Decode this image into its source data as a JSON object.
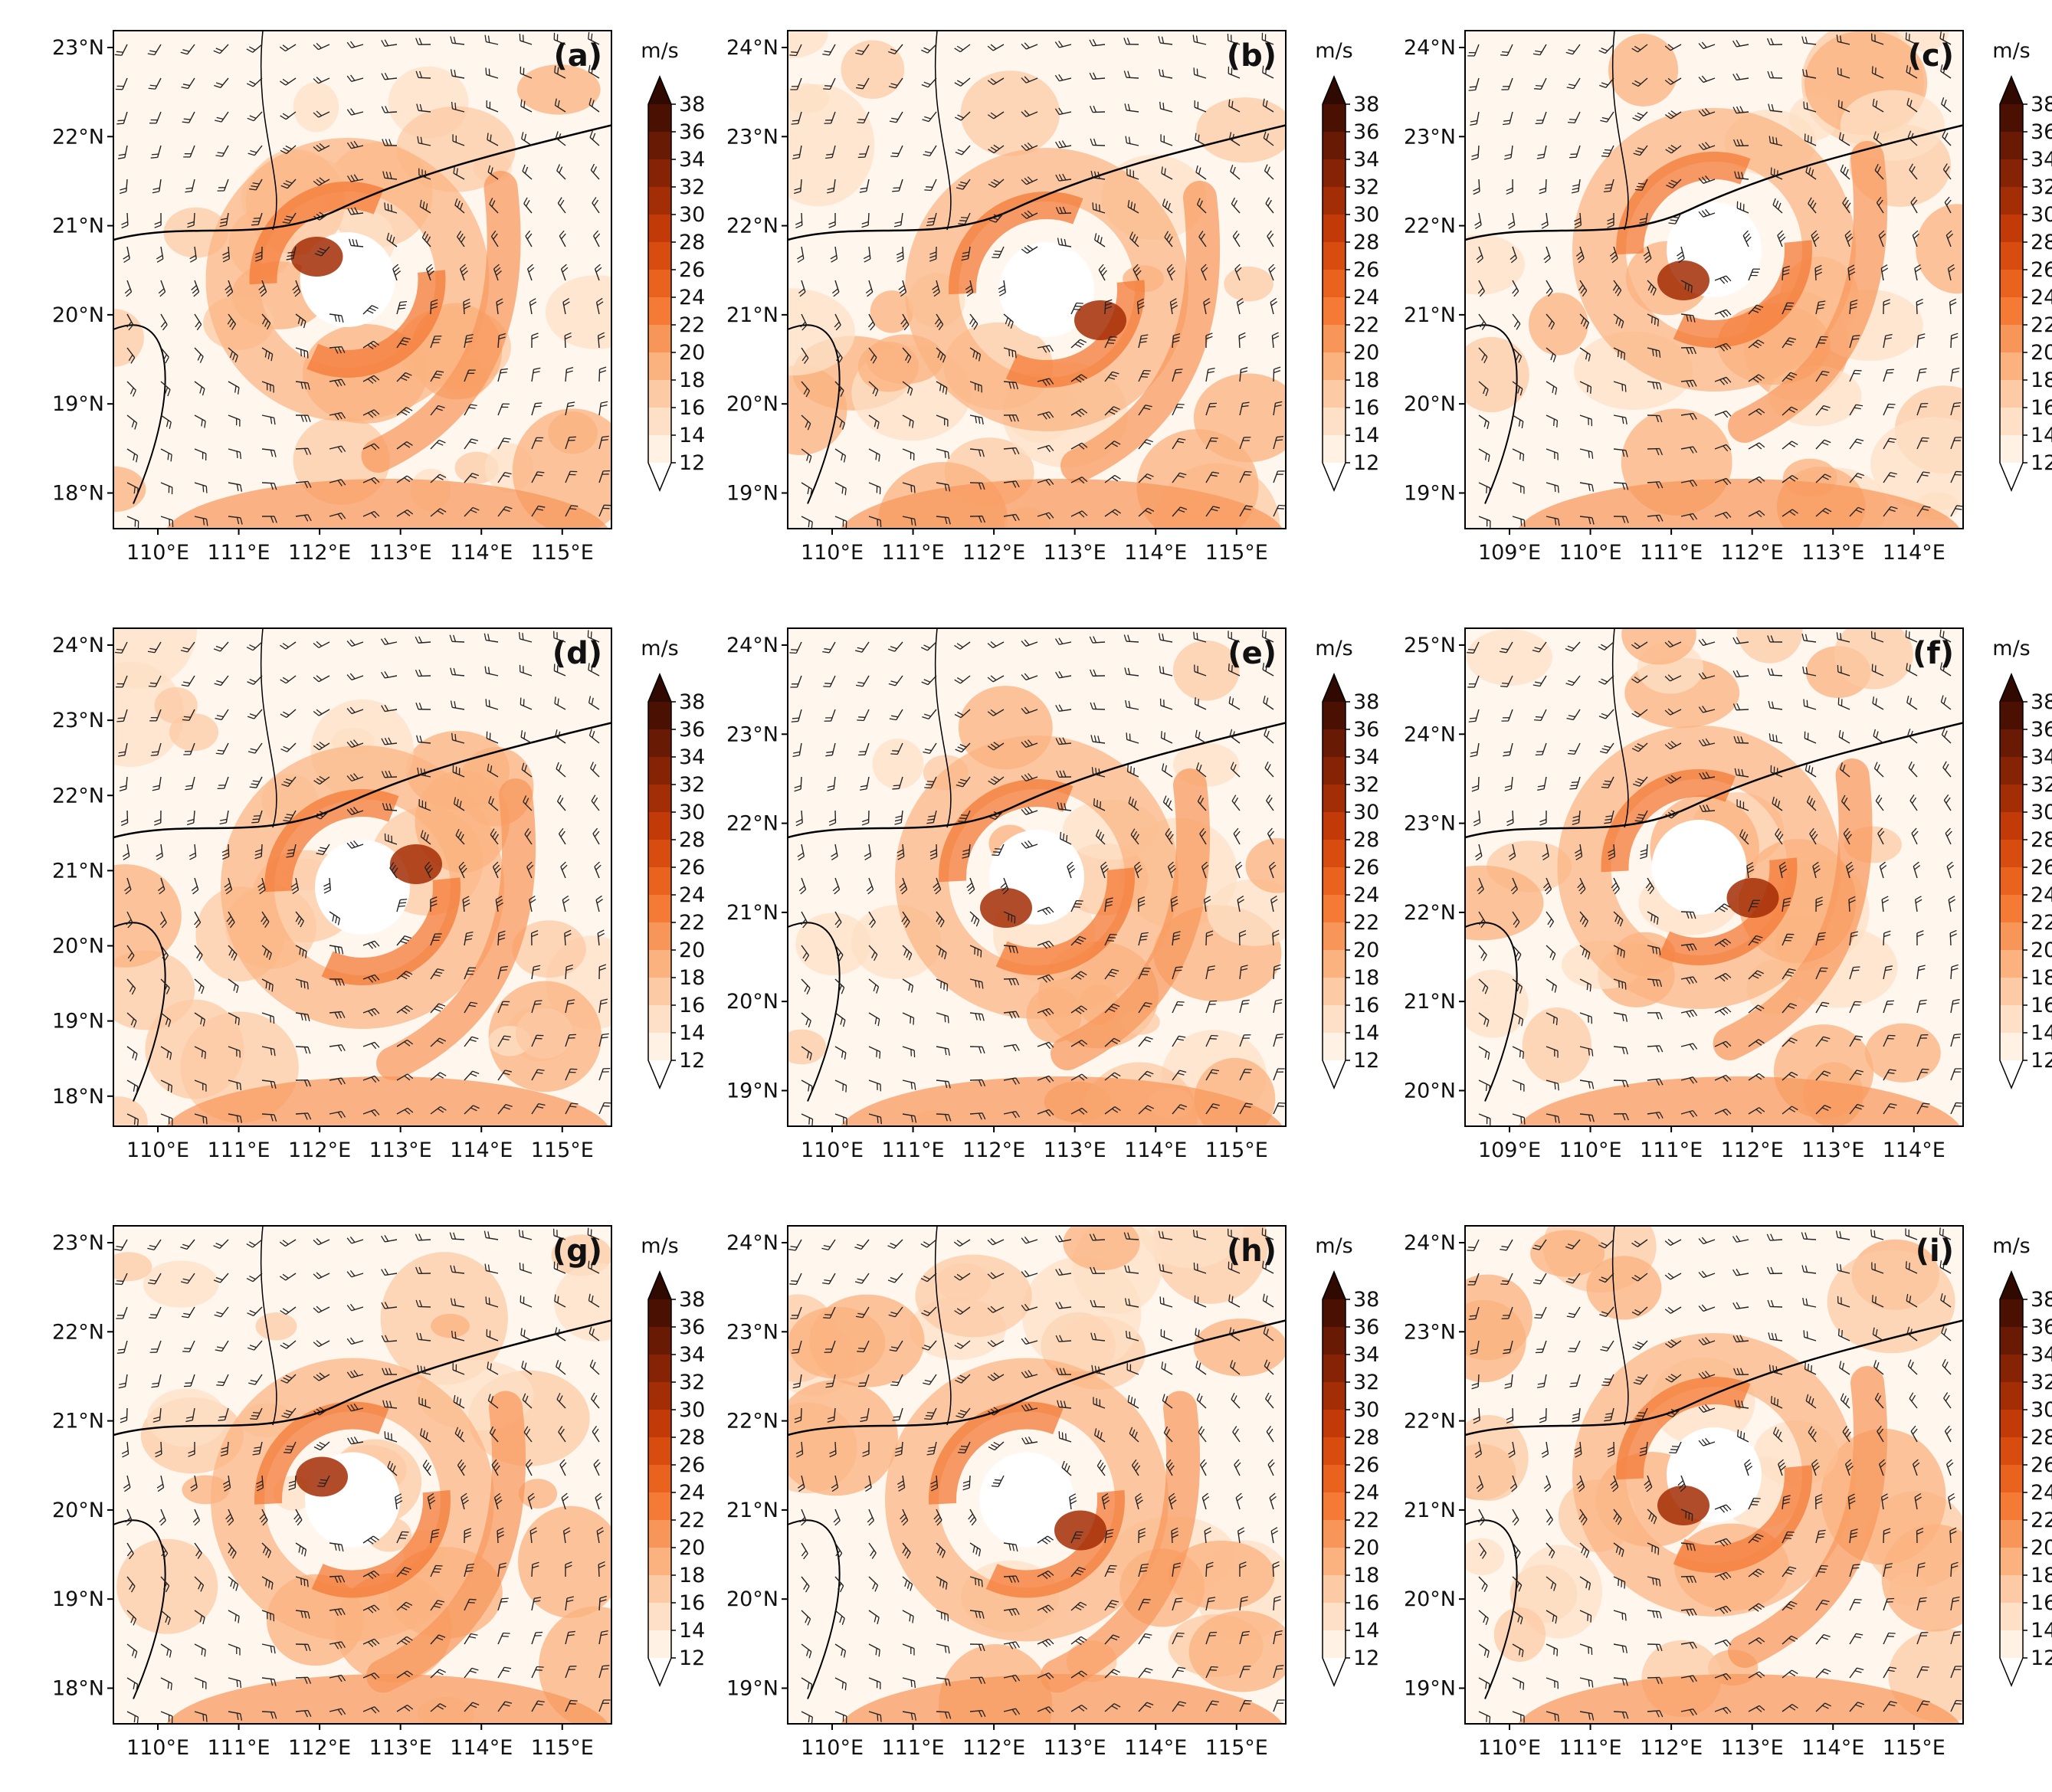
{
  "colorbar": {
    "unit": "m/s",
    "levels": [
      "12",
      "14",
      "16",
      "18",
      "20",
      "22",
      "24",
      "26",
      "28",
      "30",
      "32",
      "34",
      "36",
      "38"
    ],
    "colors": [
      "#ffffff",
      "#fff1e3",
      "#fde0c5",
      "#fccaa4",
      "#fbb27f",
      "#f89558",
      "#f47a36",
      "#e9631f",
      "#d84c0f",
      "#c13a08",
      "#a32d05",
      "#862305",
      "#691a04",
      "#4a1002",
      "#300a01"
    ]
  },
  "colors": {
    "land_line": "#000000",
    "barb": "#222222"
  },
  "panels": [
    {
      "label": "(a)",
      "lat_ticks": [
        "23°N",
        "22°N",
        "21°N",
        "20°N",
        "19°N",
        "18°N"
      ],
      "lon_ticks": [
        "110°E",
        "111°E",
        "112°E",
        "113°E",
        "114°E",
        "115°E"
      ]
    },
    {
      "label": "(b)",
      "lat_ticks": [
        "24°N",
        "23°N",
        "22°N",
        "21°N",
        "20°N",
        "19°N"
      ],
      "lon_ticks": [
        "110°E",
        "111°E",
        "112°E",
        "113°E",
        "114°E",
        "115°E"
      ]
    },
    {
      "label": "(c)",
      "lat_ticks": [
        "24°N",
        "23°N",
        "22°N",
        "21°N",
        "20°N",
        "19°N"
      ],
      "lon_ticks": [
        "109°E",
        "110°E",
        "111°E",
        "112°E",
        "113°E",
        "114°E"
      ]
    },
    {
      "label": "(d)",
      "lat_ticks": [
        "24°N",
        "23°N",
        "22°N",
        "21°N",
        "20°N",
        "19°N",
        "18°N"
      ],
      "lon_ticks": [
        "110°E",
        "111°E",
        "112°E",
        "113°E",
        "114°E",
        "115°E"
      ]
    },
    {
      "label": "(e)",
      "lat_ticks": [
        "24°N",
        "23°N",
        "22°N",
        "21°N",
        "20°N",
        "19°N"
      ],
      "lon_ticks": [
        "110°E",
        "111°E",
        "112°E",
        "113°E",
        "114°E",
        "115°E"
      ]
    },
    {
      "label": "(f)",
      "lat_ticks": [
        "25°N",
        "24°N",
        "23°N",
        "22°N",
        "21°N",
        "20°N"
      ],
      "lon_ticks": [
        "109°E",
        "110°E",
        "111°E",
        "112°E",
        "113°E",
        "114°E"
      ]
    },
    {
      "label": "(g)",
      "lat_ticks": [
        "23°N",
        "22°N",
        "21°N",
        "20°N",
        "19°N",
        "18°N"
      ],
      "lon_ticks": [
        "110°E",
        "111°E",
        "112°E",
        "113°E",
        "114°E",
        "115°E"
      ]
    },
    {
      "label": "(h)",
      "lat_ticks": [
        "24°N",
        "23°N",
        "22°N",
        "21°N",
        "20°N",
        "19°N"
      ],
      "lon_ticks": [
        "110°E",
        "111°E",
        "112°E",
        "113°E",
        "114°E",
        "115°E"
      ]
    },
    {
      "label": "(i)",
      "lat_ticks": [
        "24°N",
        "23°N",
        "22°N",
        "21°N",
        "20°N",
        "19°N"
      ],
      "lon_ticks": [
        "110°E",
        "111°E",
        "112°E",
        "113°E",
        "114°E",
        "115°E"
      ]
    }
  ]
}
